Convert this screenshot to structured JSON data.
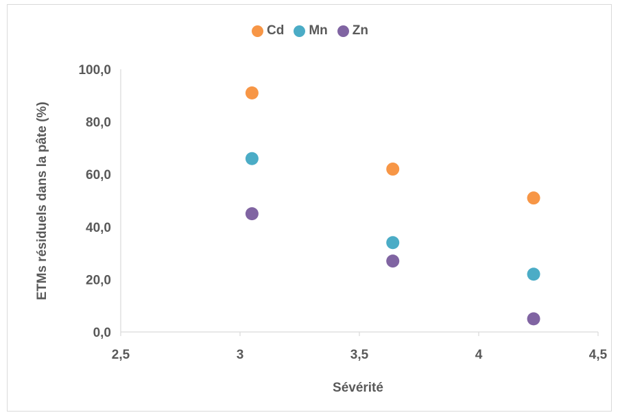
{
  "chart_data": {
    "type": "scatter",
    "title": "",
    "xlabel": "Sévérité",
    "ylabel": "ETMs résiduels dans la pâte (%)",
    "xlim": [
      2.5,
      4.5
    ],
    "ylim": [
      0,
      100
    ],
    "x_ticks": [
      "2,5",
      "3",
      "3,5",
      "4",
      "4,5"
    ],
    "y_ticks": [
      "0,0",
      "20,0",
      "40,0",
      "60,0",
      "80,0",
      "100,0"
    ],
    "x_tick_values": [
      2.5,
      3,
      3.5,
      4,
      4.5
    ],
    "y_tick_values": [
      0,
      20,
      40,
      60,
      80,
      100
    ],
    "grid": false,
    "legend_position": "top",
    "series": [
      {
        "name": "Cd",
        "color": "#f79646",
        "points": [
          [
            3.05,
            91
          ],
          [
            3.64,
            62
          ],
          [
            4.23,
            51
          ]
        ]
      },
      {
        "name": "Mn",
        "color": "#4bacc6",
        "points": [
          [
            3.05,
            66
          ],
          [
            3.64,
            34
          ],
          [
            4.23,
            22
          ]
        ]
      },
      {
        "name": "Zn",
        "color": "#8064a2",
        "points": [
          [
            3.05,
            45
          ],
          [
            3.64,
            27
          ],
          [
            4.23,
            5
          ]
        ]
      }
    ]
  }
}
